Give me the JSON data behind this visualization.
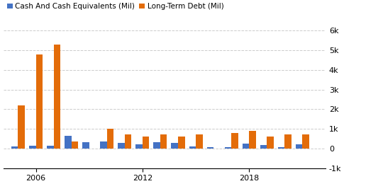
{
  "years": [
    2005,
    2006,
    2007,
    2008,
    2009,
    2010,
    2011,
    2012,
    2013,
    2014,
    2015,
    2016,
    2017,
    2018,
    2019,
    2020,
    2021
  ],
  "cash": [
    100,
    150,
    130,
    650,
    300,
    350,
    280,
    200,
    300,
    280,
    100,
    50,
    50,
    250,
    180,
    70,
    200
  ],
  "debt": [
    2200,
    4800,
    5300,
    350,
    0,
    1000,
    700,
    600,
    700,
    600,
    700,
    0,
    800,
    900,
    600,
    700,
    700
  ],
  "cash_color": "#4472c4",
  "debt_color": "#e36c09",
  "legend_cash": "Cash And Cash Equivalents (Mil)",
  "legend_debt": "Long-Term Debt (Mil)",
  "ylim_min": -1000,
  "ylim_max": 6000,
  "yticks": [
    -1000,
    0,
    1000,
    2000,
    3000,
    4000,
    5000,
    6000
  ],
  "ytick_labels": [
    "-1k",
    "0",
    "1k",
    "2k",
    "3k",
    "4k",
    "5k",
    "6k"
  ],
  "xticks": [
    2006,
    2012,
    2018
  ],
  "bar_width": 0.38,
  "grid_color": "#cccccc",
  "background_color": "#ffffff"
}
